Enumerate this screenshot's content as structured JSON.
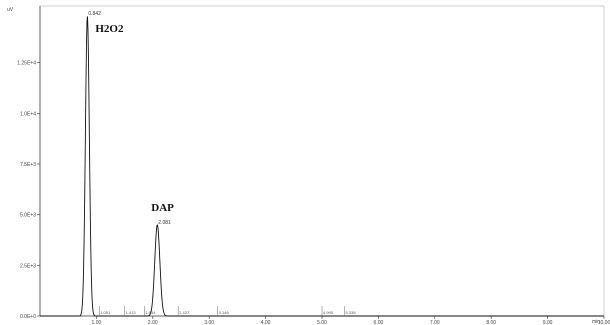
{
  "chart_data": {
    "type": "line",
    "title": "",
    "xlabel": "",
    "ylabel": "",
    "y_top_label": "uV",
    "x_unit_label": "min",
    "xlim": [
      0,
      10
    ],
    "ylim": [
      0,
      15000
    ],
    "y_ticks": [
      {
        "value": 0,
        "label": "0.0E+0"
      },
      {
        "value": 2500,
        "label": "2.5E+3"
      },
      {
        "value": 5000,
        "label": "5.0E+3"
      },
      {
        "value": 7500,
        "label": "7.5E+3"
      },
      {
        "value": 10000,
        "label": "1.0E+4"
      },
      {
        "value": 12500,
        "label": "1.25E+4"
      }
    ],
    "x_ticks": [
      {
        "value": 1,
        "label": "1.00"
      },
      {
        "value": 2,
        "label": "2.00"
      },
      {
        "value": 3,
        "label": "3.00"
      },
      {
        "value": 4,
        "label": "4.00"
      },
      {
        "value": 5,
        "label": "5.00"
      },
      {
        "value": 6,
        "label": "6.00"
      },
      {
        "value": 7,
        "label": "7.00"
      },
      {
        "value": 8,
        "label": "8.00"
      },
      {
        "value": 9,
        "label": "9.00"
      },
      {
        "value": 10,
        "label": "10.00"
      }
    ],
    "peaks": [
      {
        "name": "H2O2",
        "rt": 0.84,
        "height": 14800,
        "width": 0.035,
        "rt_label": "0.842"
      },
      {
        "name": "DAP",
        "rt": 2.08,
        "height": 4500,
        "width": 0.045,
        "rt_label": "2.081"
      }
    ],
    "small_annotations": [
      {
        "x": 1.05,
        "label": "1.051"
      },
      {
        "x": 1.5,
        "label": "1.413"
      },
      {
        "x": 1.85,
        "label": "1.834"
      },
      {
        "x": 2.45,
        "label": "2.427"
      },
      {
        "x": 3.15,
        "label": "3.146"
      },
      {
        "x": 5.0,
        "label": "4.995"
      },
      {
        "x": 5.4,
        "label": "5.338"
      }
    ]
  }
}
